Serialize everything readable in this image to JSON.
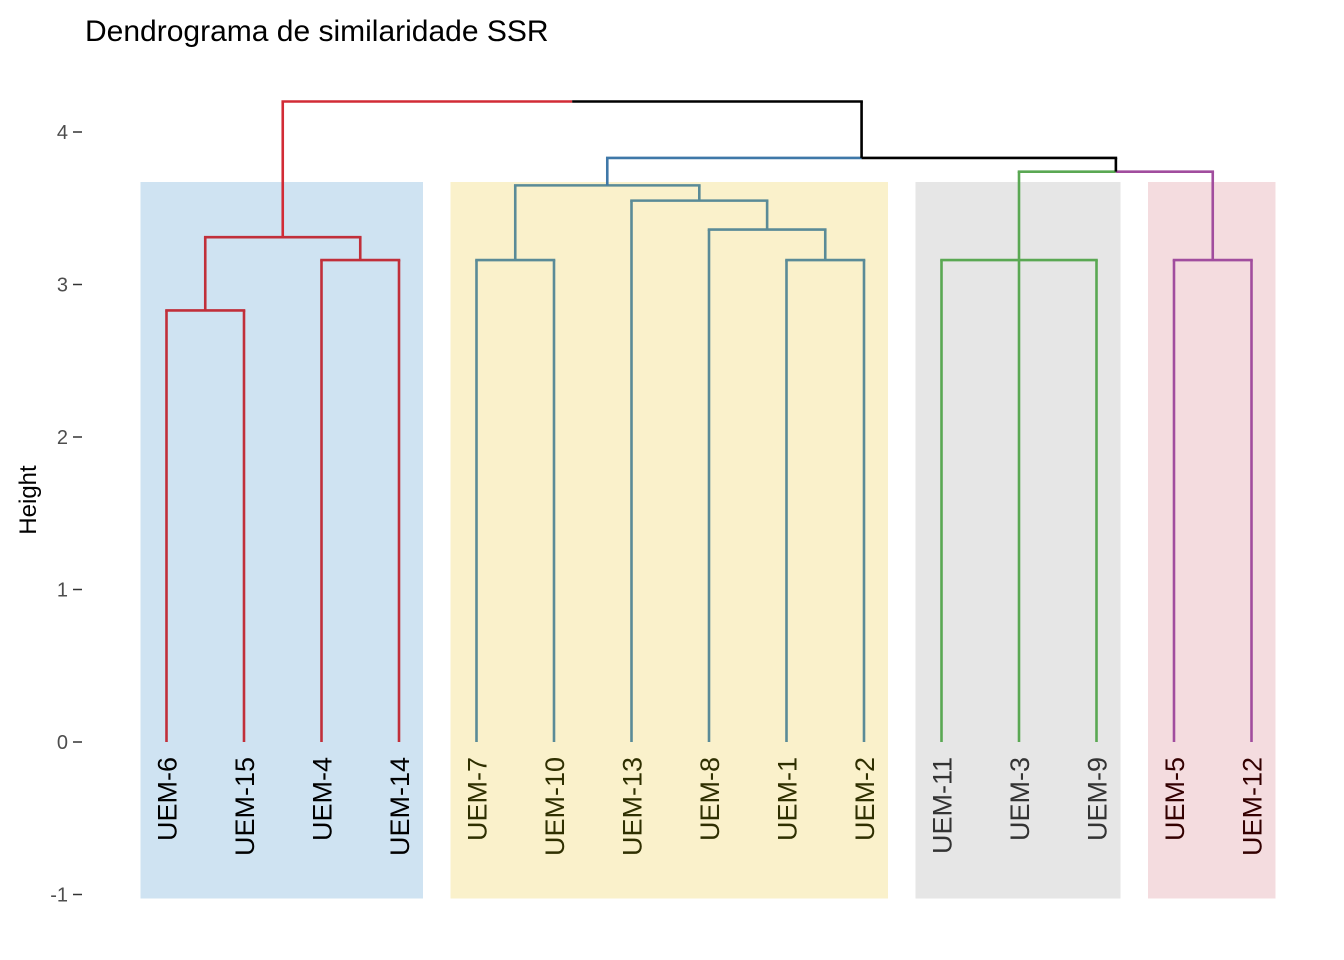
{
  "chart_data": {
    "type": "dendrogram",
    "title": "Dendrograma de similaridade SSR",
    "ylabel": "Height",
    "xlabel": "",
    "ylim": [
      -1,
      4.2
    ],
    "yticks": [
      -1,
      0,
      1,
      2,
      3,
      4
    ],
    "ytick_labels": [
      "-1",
      "0",
      "1",
      "2",
      "3",
      "4"
    ],
    "grid": false,
    "leaves": [
      "UEM-6",
      "UEM-15",
      "UEM-4",
      "UEM-14",
      "UEM-7",
      "UEM-10",
      "UEM-13",
      "UEM-8",
      "UEM-1",
      "UEM-2",
      "UEM-11",
      "UEM-3",
      "UEM-9",
      "UEM-5",
      "UEM-12"
    ],
    "clusters": [
      {
        "leaves": [
          "UEM-6",
          "UEM-15",
          "UEM-4",
          "UEM-14"
        ],
        "color": "#c12f3a",
        "label_color": "#000000",
        "rect_color": "#cfe3f2"
      },
      {
        "leaves": [
          "UEM-7",
          "UEM-10",
          "UEM-13",
          "UEM-8",
          "UEM-1",
          "UEM-2"
        ],
        "color": "#5a8b97",
        "label_color": "#2f2f00",
        "rect_color": "#faf1cb"
      },
      {
        "leaves": [
          "UEM-11",
          "UEM-3",
          "UEM-9"
        ],
        "color": "#5aa853",
        "label_color": "#333333",
        "rect_color": "#e6e6e6"
      },
      {
        "leaves": [
          "UEM-5",
          "UEM-12"
        ],
        "color": "#a14d9e",
        "label_color": "#330000",
        "rect_color": "#f4dcdf"
      }
    ],
    "merges": [
      {
        "children": [
          "UEM-6",
          "UEM-15"
        ],
        "height": 2.83,
        "color": "#c12f3a"
      },
      {
        "children": [
          "UEM-4",
          "UEM-14"
        ],
        "height": 3.16,
        "color": "#c12f3a"
      },
      {
        "children": [
          0,
          1
        ],
        "height": 3.31,
        "color": "#c12f3a"
      },
      {
        "children": [
          "UEM-7",
          "UEM-10"
        ],
        "height": 3.16,
        "color": "#5a8b97"
      },
      {
        "children": [
          "UEM-1",
          "UEM-2"
        ],
        "height": 3.16,
        "color": "#5a8b97"
      },
      {
        "children": [
          "UEM-8",
          4
        ],
        "height": 3.36,
        "color": "#5a8b97"
      },
      {
        "children": [
          "UEM-13",
          5
        ],
        "height": 3.55,
        "color": "#5a8b97"
      },
      {
        "children": [
          3,
          6
        ],
        "height": 3.65,
        "color": "#5a8b97"
      },
      {
        "children": [
          "UEM-11",
          "UEM-3",
          "UEM-9"
        ],
        "height": 3.16,
        "color": "#5aa853"
      },
      {
        "children": [
          "UEM-5",
          "UEM-12"
        ],
        "height": 3.16,
        "color": "#a14d9e"
      },
      {
        "children": [
          8,
          9
        ],
        "height": 3.74,
        "color": "#5aa853",
        "right_color": "#a14d9e"
      },
      {
        "children": [
          7,
          10
        ],
        "height": 3.83,
        "color": "#3f78a8",
        "right_color": "#000000"
      },
      {
        "children": [
          2,
          11
        ],
        "height": 4.2,
        "color": "#d22b36",
        "right_color": "#000000"
      }
    ]
  }
}
